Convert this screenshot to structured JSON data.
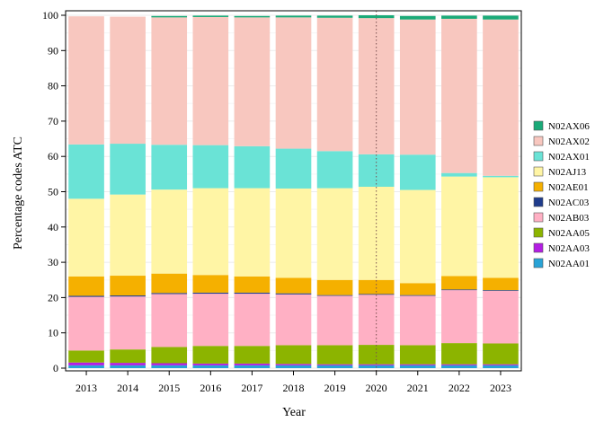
{
  "chart_data": {
    "type": "bar",
    "stacked": true,
    "xlabel": "Year",
    "ylabel": "Percentage codes ATC",
    "ylim": [
      0,
      100
    ],
    "yticks": [
      0,
      10,
      20,
      30,
      40,
      50,
      60,
      70,
      80,
      90,
      100
    ],
    "grid": true,
    "legend_position": "right",
    "reference_line": {
      "x": "2020",
      "style": "dotted"
    },
    "categories": [
      "2013",
      "2014",
      "2015",
      "2016",
      "2017",
      "2018",
      "2019",
      "2020",
      "2021",
      "2022",
      "2023"
    ],
    "series": [
      {
        "name": "N02AA01",
        "color": "#29a3d6",
        "values": [
          0.8,
          0.8,
          0.8,
          0.8,
          0.8,
          0.8,
          0.8,
          0.8,
          0.8,
          0.8,
          0.8
        ]
      },
      {
        "name": "N02AA03",
        "color": "#b31de3",
        "values": [
          0.8,
          0.7,
          0.6,
          0.5,
          0.5,
          0.4,
          0.3,
          0.3,
          0.3,
          0.3,
          0.3
        ]
      },
      {
        "name": "N02AA05",
        "color": "#8cb400",
        "values": [
          3.4,
          3.8,
          4.6,
          5.0,
          5.0,
          5.3,
          5.4,
          5.5,
          5.4,
          6.0,
          5.9
        ]
      },
      {
        "name": "N02AB03",
        "color": "#ffb0c4",
        "values": [
          15.2,
          15.0,
          15.0,
          14.8,
          14.8,
          14.4,
          14.0,
          14.2,
          14.0,
          15.0,
          14.9
        ]
      },
      {
        "name": "N02AC03",
        "color": "#1f3c8c",
        "values": [
          0.3,
          0.3,
          0.3,
          0.3,
          0.3,
          0.3,
          0.2,
          0.2,
          0.2,
          0.2,
          0.2
        ]
      },
      {
        "name": "N02AE01",
        "color": "#f5b000",
        "values": [
          5.5,
          5.6,
          5.5,
          5.0,
          4.6,
          4.4,
          4.3,
          4.0,
          3.4,
          3.8,
          3.5
        ]
      },
      {
        "name": "N02AJ13",
        "color": "#fff5a5",
        "values": [
          22.0,
          23.0,
          23.8,
          24.6,
          25.0,
          25.3,
          26.0,
          26.4,
          26.4,
          28.2,
          28.5
        ]
      },
      {
        "name": "N02AX01",
        "color": "#6ae3d6",
        "values": [
          15.4,
          14.4,
          12.7,
          12.2,
          11.9,
          11.3,
          10.5,
          9.2,
          10.0,
          1.0,
          0.4
        ]
      },
      {
        "name": "N02AX02",
        "color": "#f8c7bf",
        "values": [
          36.3,
          36.0,
          36.1,
          36.3,
          36.5,
          37.2,
          37.8,
          38.6,
          38.3,
          43.7,
          44.3
        ]
      },
      {
        "name": "N02AX06",
        "color": "#1aaa78",
        "values": [
          0.0,
          0.0,
          0.4,
          0.4,
          0.4,
          0.5,
          0.6,
          0.8,
          1.0,
          0.9,
          1.1
        ]
      }
    ]
  }
}
